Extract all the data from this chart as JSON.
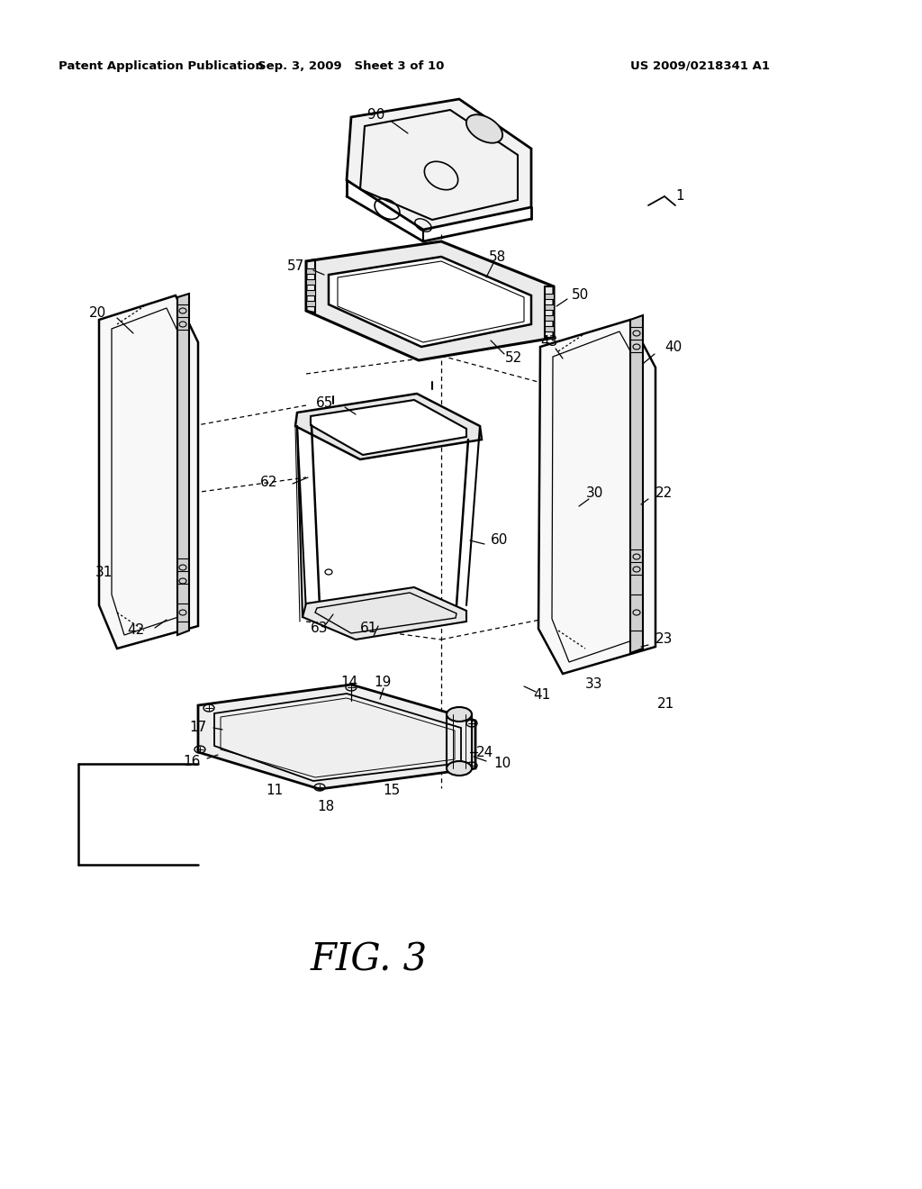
{
  "bg_color": "#ffffff",
  "line_color": "#000000",
  "header_left": "Patent Application Publication",
  "header_mid": "Sep. 3, 2009   Sheet 3 of 10",
  "header_right": "US 2009/0218341 A1",
  "figure_label": "FIG. 3"
}
